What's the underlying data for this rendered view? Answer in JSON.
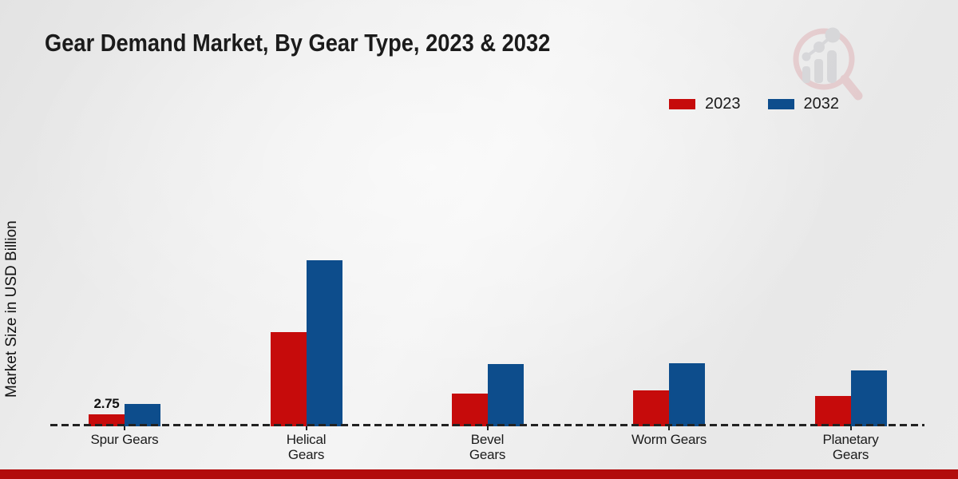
{
  "page": {
    "title": "Gear Demand Market, By Gear Type, 2023 & 2032",
    "y_axis_label": "Market Size in USD Billion"
  },
  "colors": {
    "series_2023": "#c60b0b",
    "series_2032": "#0d4d8c",
    "bottom_strip": "#b20c0c",
    "axis": "#222222",
    "text": "#1b1b1b"
  },
  "legend": {
    "position": "top-right",
    "items": [
      {
        "label": "2023",
        "color": "#c60b0b"
      },
      {
        "label": "2032",
        "color": "#0d4d8c"
      }
    ]
  },
  "watermark": {
    "name": "magnifier-bar-chart-logo"
  },
  "chart_data": {
    "type": "bar",
    "title": "Gear Demand Market, By Gear Type, 2023 & 2032",
    "xlabel": "",
    "ylabel": "Market Size in USD Billion",
    "ylim": [
      0,
      40
    ],
    "grid": false,
    "legend_position": "top-right",
    "baseline_style": "dashed",
    "categories": [
      "Spur Gears",
      "Helical Gears",
      "Bevel Gears",
      "Worm Gears",
      "Planetary Gears"
    ],
    "category_lines": [
      [
        "Spur Gears",
        ""
      ],
      [
        "Helical",
        "Gears"
      ],
      [
        "Bevel",
        "Gears"
      ],
      [
        "Worm Gears",
        ""
      ],
      [
        "Planetary",
        "Gears"
      ]
    ],
    "series": [
      {
        "name": "2023",
        "color": "#c60b0b",
        "values": [
          2.75,
          21.6,
          7.6,
          8.3,
          6.9
        ],
        "labels": [
          "2.75",
          "",
          "",
          "",
          ""
        ]
      },
      {
        "name": "2032",
        "color": "#0d4d8c",
        "values": [
          5.1,
          38.2,
          14.3,
          14.5,
          12.9
        ],
        "labels": [
          "",
          "",
          "",
          "",
          ""
        ]
      }
    ]
  }
}
